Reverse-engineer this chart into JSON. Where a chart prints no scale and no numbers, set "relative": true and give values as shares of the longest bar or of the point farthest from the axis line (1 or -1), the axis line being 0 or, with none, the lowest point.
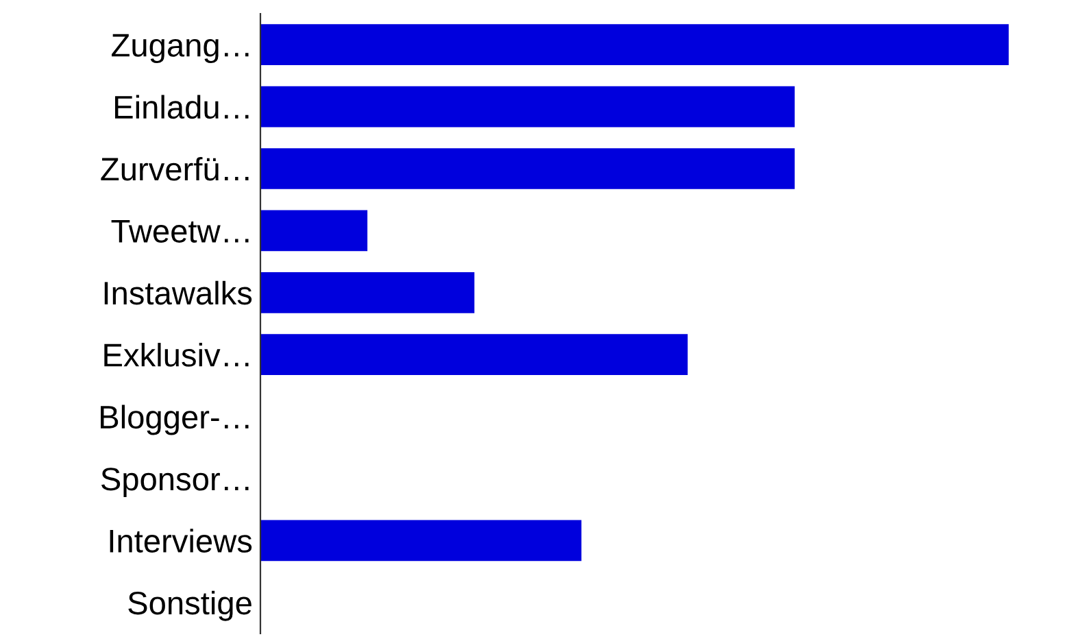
{
  "chart_data": {
    "type": "bar",
    "orientation": "horizontal",
    "relative": true,
    "categories": [
      "Zugang…",
      "Einladu…",
      "Zurverfü…",
      "Tweetw…",
      "Instawalks",
      "Exklusiv…",
      "Blogger-…",
      "Sponsor…",
      "Interviews",
      "Sonstige"
    ],
    "values": [
      1,
      0.714,
      0.714,
      0.143,
      0.286,
      0.571,
      0,
      0,
      0.429,
      0
    ],
    "color": "#0000dd",
    "grid": false,
    "legend": false
  }
}
